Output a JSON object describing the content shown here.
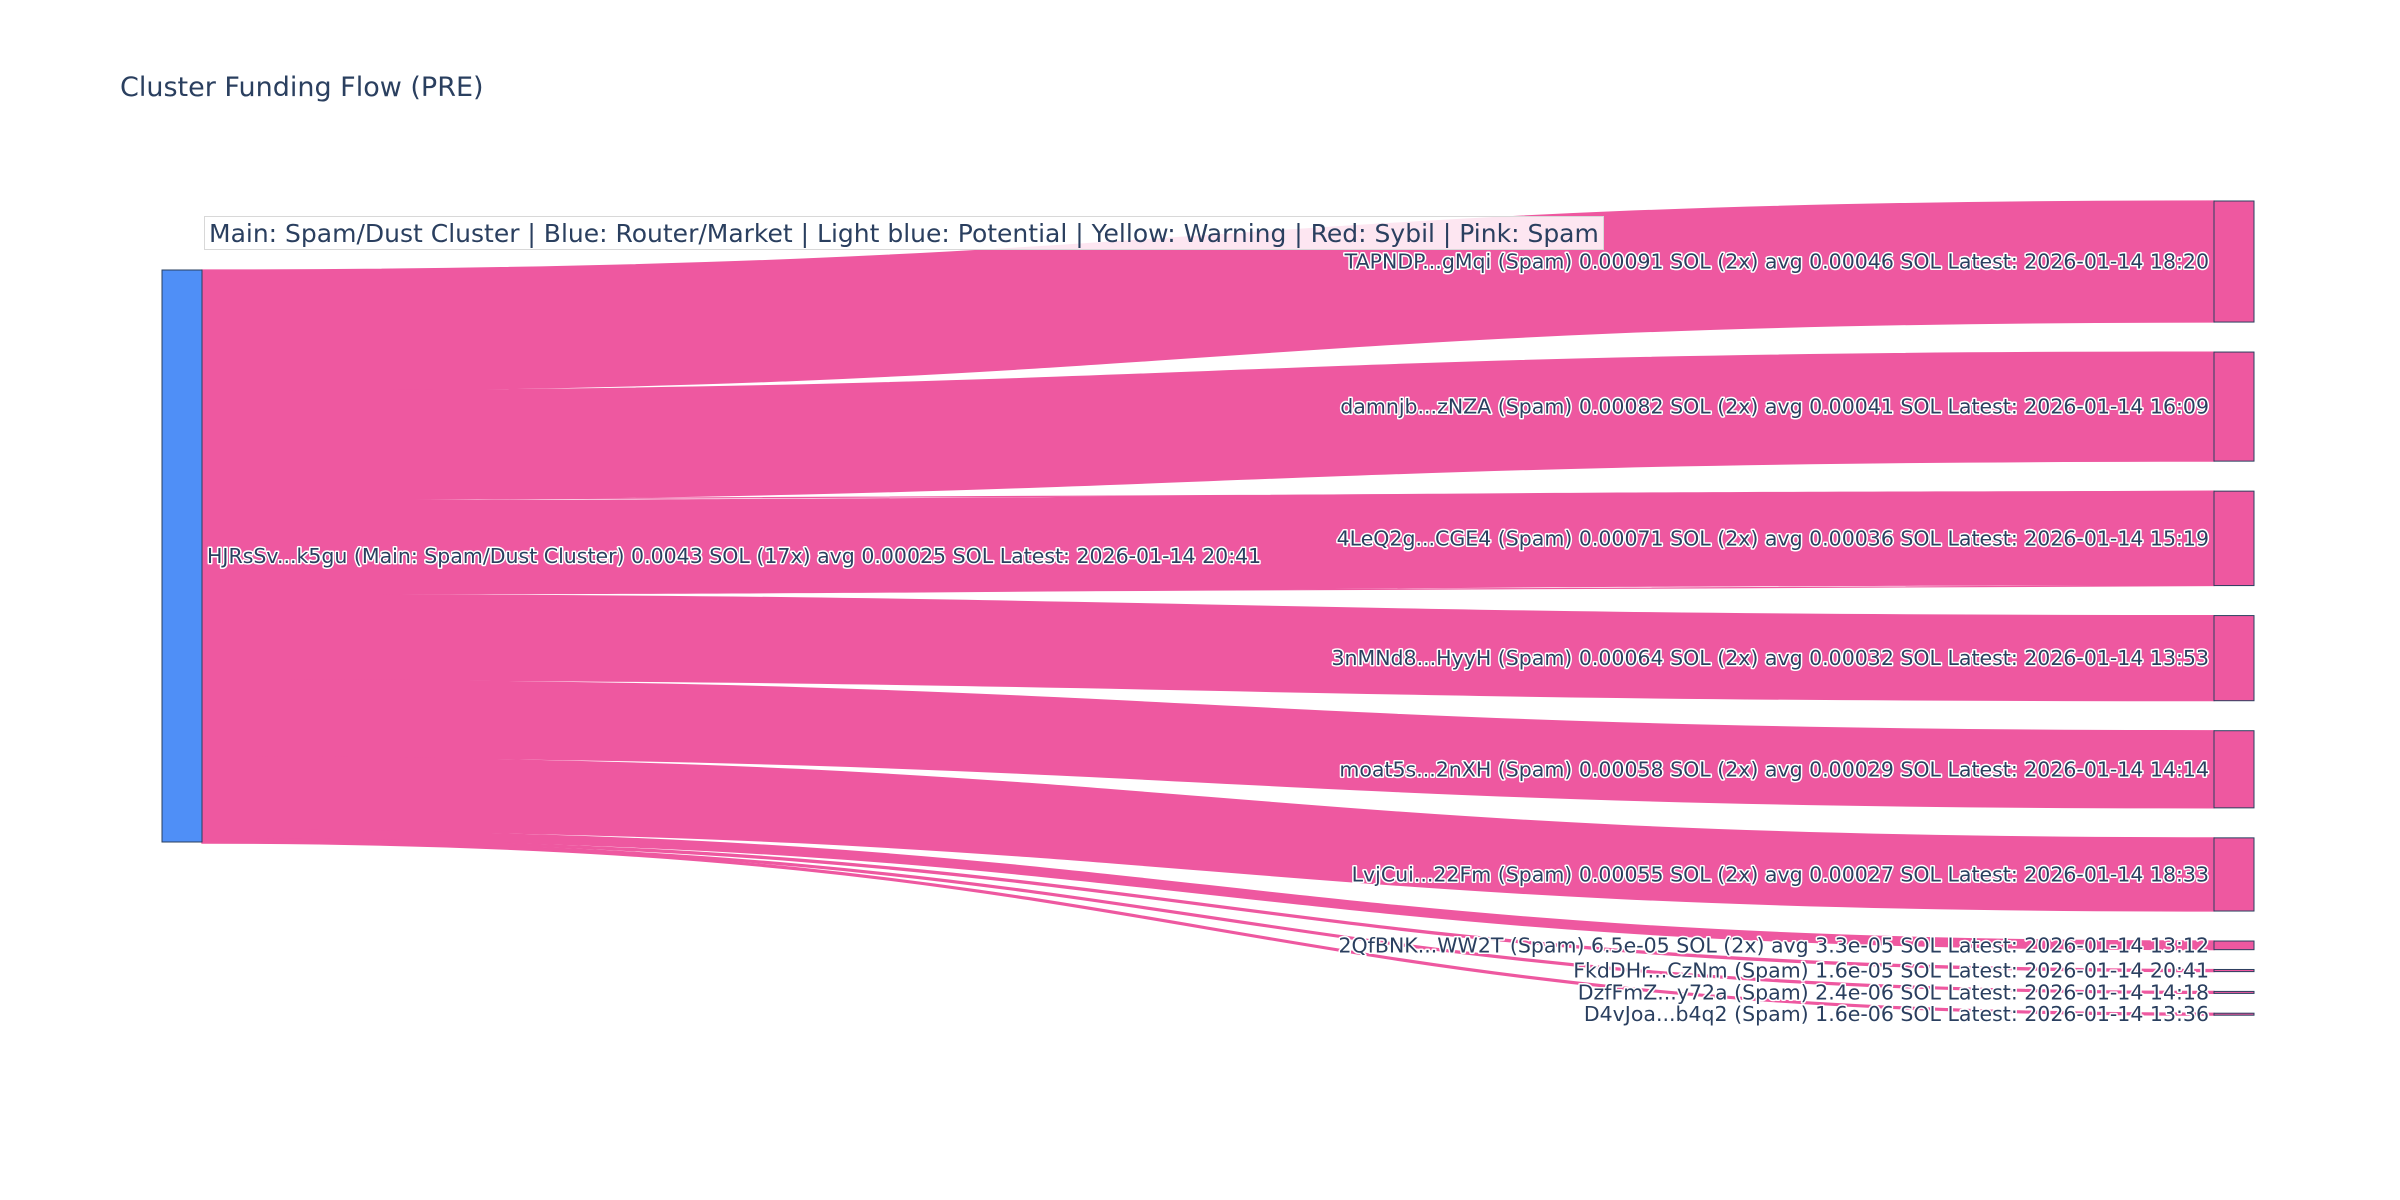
{
  "title": "Cluster Funding Flow (PRE)",
  "legend_text": "Main: Spam/Dust Cluster  |  Blue: Router/Market | Light blue: Potential | Yellow: Warning | Red: Sybil | Pink: Spam",
  "colors": {
    "source_node": "#4f8ff7",
    "target_node": "#ee58a0",
    "link": "#ee58a0",
    "node_border": "#2a3f5f",
    "text": "#2a3f5f"
  },
  "chart_data": {
    "type": "sankey",
    "title": "Cluster Funding Flow (PRE)",
    "unit": "SOL",
    "source": {
      "id": "HJRsSv...k5gu",
      "label": "HJRsSv...k5gu (Main: Spam/Dust Cluster) 0.0043 SOL (17x) avg 0.00025 SOL Latest: 2026-01-14 20:41",
      "value": 0.0043
    },
    "targets": [
      {
        "id": "TAPNDP...gMqi",
        "label": "TAPNDP...gMqi (Spam) 0.00091 SOL (2x) avg 0.00046 SOL Latest: 2026-01-14 18:20",
        "value": 0.00091
      },
      {
        "id": "damnjb...zNZA",
        "label": "damnjb...zNZA (Spam) 0.00082 SOL (2x) avg 0.00041 SOL Latest: 2026-01-14 16:09",
        "value": 0.00082
      },
      {
        "id": "4LeQ2g...CGE4",
        "label": "4LeQ2g...CGE4 (Spam) 0.00071 SOL (2x) avg 0.00036 SOL Latest: 2026-01-14 15:19",
        "value": 0.00071
      },
      {
        "id": "3nMNd8...HyyH",
        "label": "3nMNd8...HyyH (Spam) 0.00064 SOL (2x) avg 0.00032 SOL Latest: 2026-01-14 13:53",
        "value": 0.00064
      },
      {
        "id": "moat5s...2nXH",
        "label": "moat5s...2nXH (Spam) 0.00058 SOL (2x) avg 0.00029 SOL Latest: 2026-01-14 14:14",
        "value": 0.00058
      },
      {
        "id": "LvjCui...22Fm",
        "label": "LvjCui...22Fm (Spam) 0.00055 SOL (2x) avg 0.00027 SOL Latest: 2026-01-14 18:33",
        "value": 0.00055
      },
      {
        "id": "2QfBNK...WW2T",
        "label": "2QfBNK...WW2T (Spam) 6.5e-05 SOL (2x) avg 3.3e-05 SOL Latest: 2026-01-14 13:12",
        "value": 6.5e-05
      },
      {
        "id": "FkdDHr...CzNm",
        "label": "FkdDHr...CzNm (Spam) 1.6e-05 SOL Latest: 2026-01-14 20:41",
        "value": 1.6e-05
      },
      {
        "id": "DzfFmZ...y72a",
        "label": "DzfFmZ...y72a (Spam) 2.4e-06 SOL Latest: 2026-01-14 14:18",
        "value": 2.4e-06
      },
      {
        "id": "D4vJoa...b4q2",
        "label": "D4vJoa...b4q2 (Spam) 1.6e-06 SOL Latest: 2026-01-14 13:36",
        "value": 1.6e-06
      }
    ]
  }
}
